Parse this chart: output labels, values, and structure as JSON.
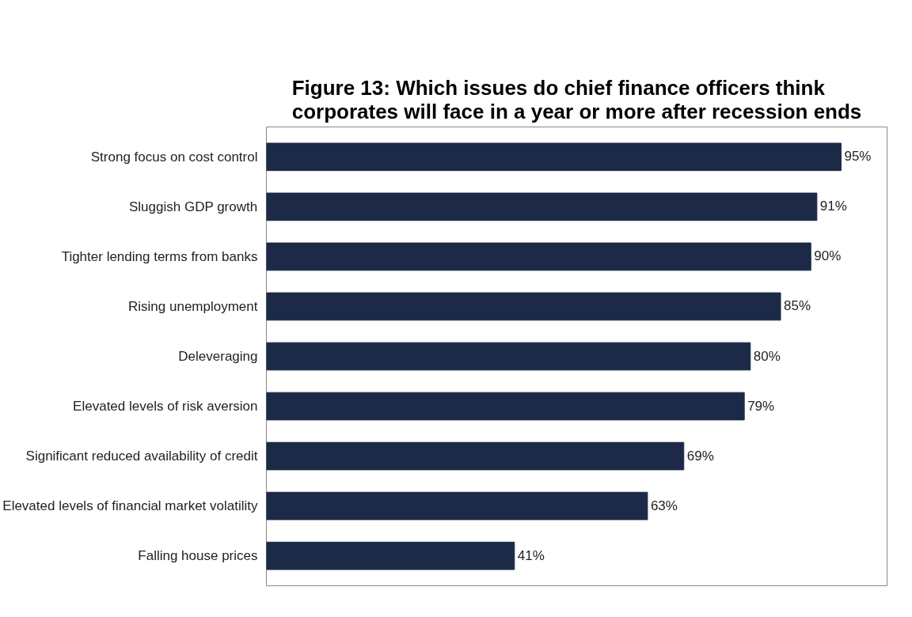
{
  "chart_data": {
    "type": "bar",
    "orientation": "horizontal",
    "title": "Figure 13: Which issues do chief finance officers think\ncorporates will face in a year or more after recession ends",
    "categories": [
      "Strong focus on cost control",
      "Sluggish GDP growth",
      "Tighter lending terms from banks",
      "Rising unemployment",
      "Deleveraging",
      "Elevated levels of risk aversion",
      "Significant reduced availability of credit",
      "Elevated levels of financial market volatility",
      "Falling house prices"
    ],
    "values": [
      95,
      91,
      90,
      85,
      80,
      79,
      69,
      63,
      41
    ],
    "value_labels": [
      "95%",
      "91%",
      "90%",
      "85%",
      "80%",
      "79%",
      "69%",
      "63%",
      "41%"
    ],
    "color": "#1c2a48",
    "grid": false
  }
}
